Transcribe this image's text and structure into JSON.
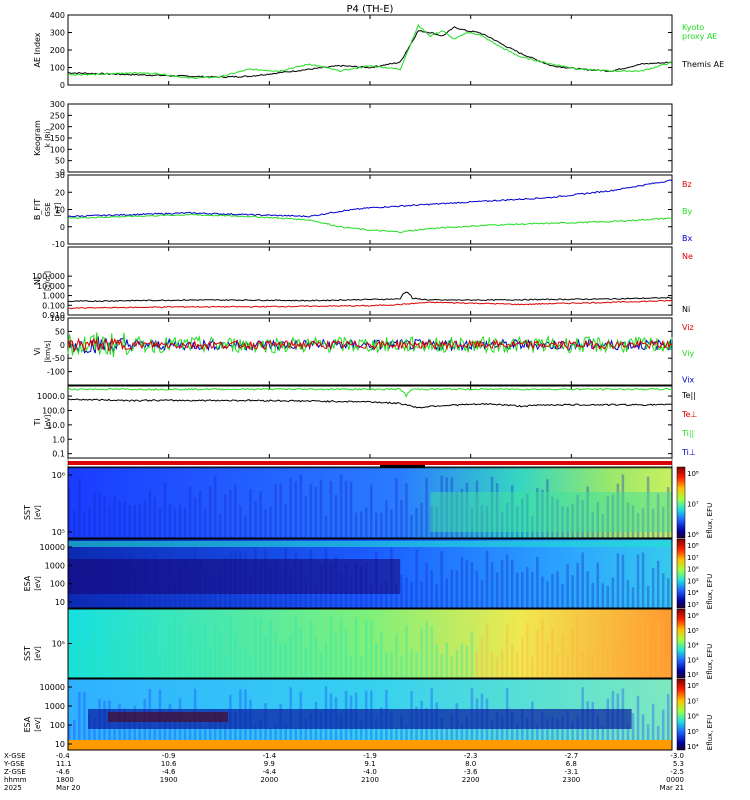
{
  "title": "P4 (TH-E)",
  "colors": {
    "black": "#000000",
    "green": "#22dd22",
    "blue": "#0000cc",
    "red": "#dd0000",
    "frame": "#000000"
  },
  "chart_data": [
    {
      "id": "ae",
      "type": "line",
      "ylabel": "AE Index",
      "ylim": [
        0,
        400
      ],
      "yticks": [
        0,
        100,
        200,
        300,
        400
      ],
      "legend": [
        {
          "text": "Kyoto",
          "color": "#22dd22"
        },
        {
          "text": "proxy AE",
          "color": "#22dd22"
        },
        {
          "text": "Themis AE",
          "color": "#000000"
        }
      ],
      "series": [
        {
          "name": "Themis AE",
          "color": "#000000",
          "x": [
            0,
            0.05,
            0.1,
            0.15,
            0.2,
            0.25,
            0.3,
            0.35,
            0.4,
            0.45,
            0.5,
            0.55,
            0.58,
            0.6,
            0.62,
            0.64,
            0.66,
            0.68,
            0.7,
            0.72,
            0.75,
            0.8,
            0.85,
            0.9,
            0.95,
            1.0
          ],
          "y": [
            70,
            65,
            60,
            55,
            50,
            45,
            50,
            70,
            90,
            110,
            100,
            130,
            310,
            300,
            280,
            330,
            310,
            300,
            270,
            230,
            180,
            110,
            90,
            80,
            120,
            130
          ]
        },
        {
          "name": "proxy AE",
          "color": "#22dd22",
          "x": [
            0,
            0.05,
            0.1,
            0.15,
            0.2,
            0.25,
            0.3,
            0.35,
            0.4,
            0.45,
            0.5,
            0.55,
            0.58,
            0.6,
            0.62,
            0.64,
            0.66,
            0.68,
            0.7,
            0.72,
            0.75,
            0.8,
            0.85,
            0.9,
            0.95,
            1.0
          ],
          "y": [
            60,
            60,
            70,
            65,
            40,
            45,
            90,
            80,
            120,
            80,
            110,
            90,
            340,
            280,
            310,
            260,
            300,
            290,
            250,
            210,
            160,
            120,
            90,
            80,
            80,
            130
          ]
        }
      ]
    },
    {
      "id": "keogram",
      "type": "line",
      "ylabel": "Keogram",
      "ylabel2": "k (Ri)",
      "ylim": [
        0,
        300
      ],
      "yticks": [
        0,
        50,
        100,
        150,
        200,
        250,
        300
      ],
      "series": []
    },
    {
      "id": "bfield",
      "type": "line",
      "ylabel": "B_FIT",
      "ylabel2": "GSE",
      "ylabel3": "[nT]",
      "ylim": [
        -10,
        30
      ],
      "yticks": [
        -10,
        0,
        10,
        20,
        30
      ],
      "legend": [
        {
          "text": "Bz",
          "color": "#dd0000"
        },
        {
          "text": "By",
          "color": "#22dd22"
        },
        {
          "text": "Bx",
          "color": "#0000cc"
        }
      ],
      "series": [
        {
          "name": "Bx",
          "color": "#0000cc",
          "x": [
            0,
            0.1,
            0.2,
            0.3,
            0.4,
            0.45,
            0.5,
            0.55,
            0.6,
            0.7,
            0.8,
            0.9,
            1.0
          ],
          "y": [
            6,
            7,
            8,
            7,
            6,
            9,
            11,
            12,
            13,
            15,
            17,
            21,
            27
          ]
        },
        {
          "name": "By",
          "color": "#22dd22",
          "x": [
            0,
            0.1,
            0.2,
            0.3,
            0.4,
            0.45,
            0.5,
            0.55,
            0.6,
            0.7,
            0.8,
            0.9,
            1.0
          ],
          "y": [
            5,
            6,
            7,
            6,
            4,
            0,
            -2,
            -3,
            -1,
            1,
            2,
            3,
            5
          ]
        }
      ]
    },
    {
      "id": "density",
      "type": "line",
      "ylabel": "Ni",
      "ylabel2": "[1/cc]",
      "yscale": "log",
      "ylim": [
        0.01,
        100000
      ],
      "ytick_labels": [
        "0.010",
        "0.100",
        "1.000",
        "10.000",
        "100.000"
      ],
      "yticks": [
        0.01,
        0.1,
        1,
        10,
        100
      ],
      "legend": [
        {
          "text": "Ne",
          "color": "#dd0000"
        },
        {
          "text": "Ni",
          "color": "#000000"
        }
      ],
      "series": [
        {
          "name": "Ni",
          "color": "#000000",
          "x": [
            0,
            0.1,
            0.2,
            0.3,
            0.4,
            0.5,
            0.55,
            0.56,
            0.57,
            0.6,
            0.7,
            0.8,
            0.9,
            1.0
          ],
          "y": [
            0.25,
            0.3,
            0.35,
            0.35,
            0.3,
            0.4,
            0.45,
            2.5,
            0.5,
            0.35,
            0.35,
            0.4,
            0.45,
            0.6
          ]
        },
        {
          "name": "Ne",
          "color": "#dd0000",
          "x": [
            0,
            0.1,
            0.2,
            0.3,
            0.4,
            0.5,
            0.55,
            0.6,
            0.7,
            0.75,
            0.8,
            0.9,
            1.0
          ],
          "y": [
            0.05,
            0.06,
            0.07,
            0.07,
            0.08,
            0.09,
            0.12,
            0.2,
            0.15,
            0.12,
            0.15,
            0.2,
            0.3
          ]
        }
      ]
    },
    {
      "id": "velocity",
      "type": "line",
      "ylabel": "Vi",
      "ylabel2": "[km/s]",
      "ylim": [
        -150,
        100
      ],
      "yticks": [
        -100,
        -50,
        0,
        50,
        100
      ],
      "legend": [
        {
          "text": "Viz",
          "color": "#dd0000"
        },
        {
          "text": "Viy",
          "color": "#22dd22"
        },
        {
          "text": "Vix",
          "color": "#0000cc"
        }
      ],
      "series": [
        {
          "name": "Vix",
          "color": "#0000cc",
          "amplitude": 20,
          "x": [
            0,
            1.0
          ],
          "y": [
            0,
            0
          ]
        },
        {
          "name": "Viy",
          "color": "#22dd22",
          "amplitude": 30,
          "x": [
            0,
            1.0
          ],
          "y": [
            0,
            0
          ]
        },
        {
          "name": "Viz",
          "color": "#dd0000",
          "amplitude": 15,
          "x": [
            0,
            1.0
          ],
          "y": [
            0,
            0
          ]
        }
      ]
    },
    {
      "id": "temperature",
      "type": "line",
      "ylabel": "Ti",
      "ylabel2": "[eV]",
      "yscale": "log",
      "ylim": [
        0.05,
        5000
      ],
      "ytick_labels": [
        "0.1",
        "1.0",
        "10.0",
        "100.0",
        "1000.0"
      ],
      "yticks": [
        0.1,
        1,
        10,
        100,
        1000
      ],
      "legend": [
        {
          "text": "Te||",
          "color": "#000000"
        },
        {
          "text": "Te⊥",
          "color": "#dd0000"
        },
        {
          "text": "Ti||",
          "color": "#22dd22"
        },
        {
          "text": "Ti⊥",
          "color": "#0000cc"
        }
      ],
      "series": [
        {
          "name": "Ti||",
          "color": "#22dd22",
          "x": [
            0,
            0.5,
            0.55,
            0.56,
            0.57,
            0.6,
            1.0
          ],
          "y": [
            3000,
            3000,
            3000,
            1000,
            3000,
            3000,
            3000
          ]
        },
        {
          "name": "Te||",
          "color": "#000000",
          "x": [
            0,
            0.1,
            0.2,
            0.3,
            0.4,
            0.5,
            0.55,
            0.58,
            0.6,
            0.65,
            0.7,
            0.75,
            0.8,
            0.9,
            1.0
          ],
          "y": [
            600,
            500,
            500,
            500,
            450,
            400,
            300,
            150,
            200,
            250,
            280,
            200,
            250,
            250,
            250
          ]
        }
      ]
    },
    {
      "id": "sst_ion",
      "type": "heatmap",
      "ylabel": "SST",
      "ylabel2": "[eV]",
      "ytick_labels": [
        "10⁶",
        "10⁵"
      ],
      "zlabel": "Eflux, EFU",
      "ztick_labels": [
        "10⁸",
        "10⁷",
        "10⁶"
      ]
    },
    {
      "id": "esa_ion",
      "type": "heatmap",
      "ylabel": "ESA",
      "ylabel2": "[eV]",
      "ytick_labels": [
        "10000",
        "1000",
        "100",
        "10"
      ],
      "zlabel": "Eflux, EFU",
      "ztick_labels": [
        "10⁸",
        "10⁷",
        "10⁶",
        "10⁵",
        "10⁴",
        "10³"
      ]
    },
    {
      "id": "sst_elec",
      "type": "heatmap",
      "ylabel": "SST",
      "ylabel2": "[eV]",
      "ytick_labels": [
        "10⁵"
      ],
      "zlabel": "Eflux, EFU",
      "ztick_labels": [
        "10⁶",
        "10⁵",
        "10⁴",
        "10³",
        "10²"
      ]
    },
    {
      "id": "esa_elec",
      "type": "heatmap",
      "ylabel": "ESA",
      "ylabel2": "[eV]",
      "ytick_labels": [
        "10000",
        "1000",
        "100",
        "10"
      ],
      "zlabel": "Eflux, EFU",
      "ztick_labels": [
        "10⁸",
        "10⁷",
        "10⁶",
        "10⁵",
        "10⁴"
      ]
    }
  ],
  "footer": {
    "row_labels": [
      "X-GSE",
      "Y-GSE",
      "Z-GSE",
      "hhmm",
      "2025"
    ],
    "columns": [
      {
        "x": "-0.4",
        "y": "11.1",
        "z": "-4.6",
        "time": "1800",
        "date": "Mar 20"
      },
      {
        "x": "-0.9",
        "y": "10.6",
        "z": "-4.6",
        "time": "1900",
        "date": ""
      },
      {
        "x": "-1.4",
        "y": "9.9",
        "z": "-4.4",
        "time": "2000",
        "date": ""
      },
      {
        "x": "-1.9",
        "y": "9.1",
        "z": "-4.0",
        "time": "2100",
        "date": ""
      },
      {
        "x": "-2.3",
        "y": "8.0",
        "z": "-3.6",
        "time": "2200",
        "date": ""
      },
      {
        "x": "-2.7",
        "y": "6.8",
        "z": "-3.1",
        "time": "2300",
        "date": ""
      },
      {
        "x": "-3.0",
        "y": "5.3",
        "z": "-2.5",
        "time": "0000",
        "date": "Mar 21"
      }
    ]
  }
}
